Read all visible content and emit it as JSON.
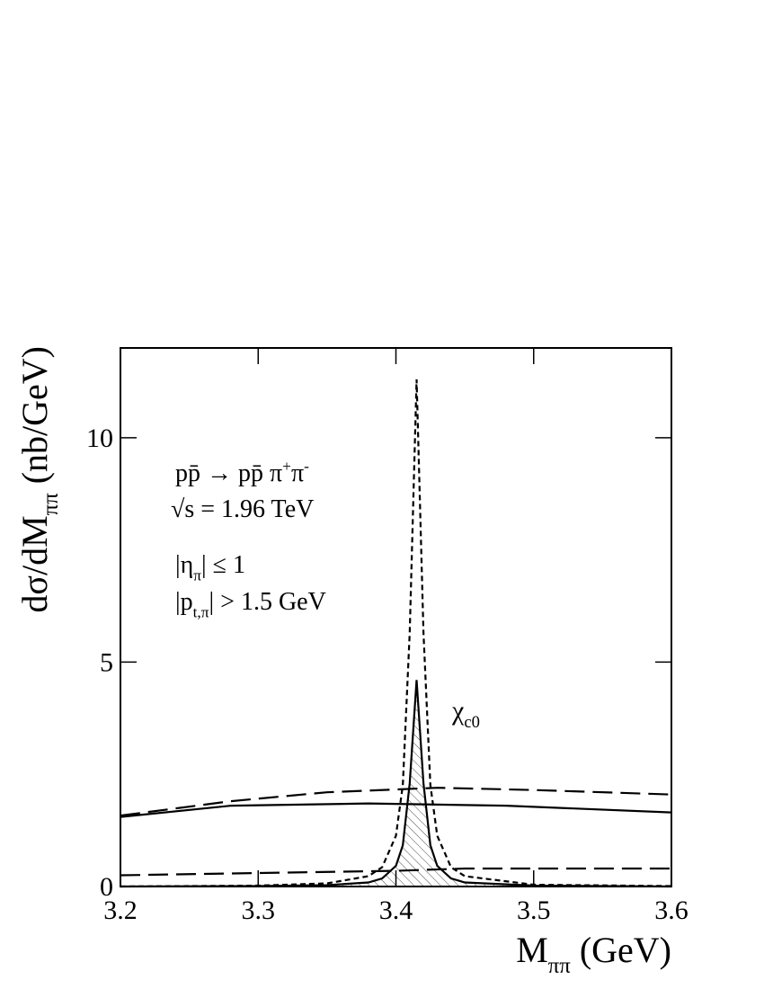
{
  "chart_data": {
    "type": "line",
    "y_label": [
      {
        "t": "dσ/dM"
      },
      {
        "sub": "ππ"
      },
      {
        "t": " (nb/GeV)"
      }
    ],
    "x_label": [
      {
        "t": "M"
      },
      {
        "sub": "ππ"
      },
      {
        "t": " (GeV)"
      }
    ],
    "annotations": [
      [
        {
          "t": "pp̄ → pp̄ π"
        },
        {
          "sup": "+"
        },
        {
          "t": "π"
        },
        {
          "sup": "-"
        }
      ],
      [
        {
          "t": "√s = 1.96 TeV"
        }
      ],
      [
        {
          "t": "|η"
        },
        {
          "sub": "π"
        },
        {
          "t": "| ≤ 1"
        }
      ],
      [
        {
          "t": "|p"
        },
        {
          "sub": "t,π"
        },
        {
          "t": "| > 1.5 GeV"
        }
      ],
      [
        {
          "t": "χ"
        },
        {
          "sub": "c0"
        }
      ]
    ],
    "xlim": [
      3.2,
      3.6
    ],
    "ylim": [
      0,
      12
    ],
    "xticks": [
      {
        "value": 3.2,
        "label": "3.2"
      },
      3.3,
      3.4,
      3.5,
      {
        "value": 3.6,
        "label": "3.6"
      }
    ],
    "yticks": [
      0,
      5,
      10
    ],
    "series": [
      {
        "color": "#000000",
        "dash": "solid",
        "x": [
          3.2,
          3.28,
          3.38,
          3.48,
          3.6
        ],
        "values": [
          1.55,
          1.8,
          1.85,
          1.8,
          1.65
        ]
      },
      {
        "color": "#000000",
        "dash": "long",
        "x": [
          3.2,
          3.28,
          3.35,
          3.43,
          3.5,
          3.6
        ],
        "values": [
          1.58,
          1.9,
          2.1,
          2.2,
          2.15,
          2.05
        ]
      },
      {
        "color": "#000000",
        "dash": "long",
        "x": [
          3.2,
          3.3,
          3.4,
          3.45,
          3.6
        ],
        "values": [
          0.25,
          0.3,
          0.35,
          0.4,
          0.4
        ]
      },
      {
        "color": "#000000",
        "dash": "short",
        "x": [
          3.2,
          3.3,
          3.35,
          3.38,
          3.39,
          3.4,
          3.405,
          3.41,
          3.415,
          3.42,
          3.425,
          3.43,
          3.44,
          3.45,
          3.5,
          3.6
        ],
        "values": [
          0,
          0.02,
          0.07,
          0.23,
          0.43,
          1.13,
          2.26,
          5.65,
          11.3,
          5.65,
          2.26,
          1.13,
          0.43,
          0.23,
          0.04,
          0.01
        ]
      },
      {
        "color": "#000000",
        "dash": "solid",
        "fill": "hatch",
        "x": [
          3.2,
          3.3,
          3.35,
          3.38,
          3.39,
          3.4,
          3.405,
          3.41,
          3.415,
          3.42,
          3.425,
          3.43,
          3.44,
          3.45,
          3.5,
          3.6
        ],
        "values": [
          0,
          0.01,
          0.03,
          0.09,
          0.18,
          0.46,
          0.92,
          2.3,
          4.6,
          2.3,
          0.92,
          0.46,
          0.18,
          0.09,
          0.02,
          0
        ]
      }
    ]
  }
}
